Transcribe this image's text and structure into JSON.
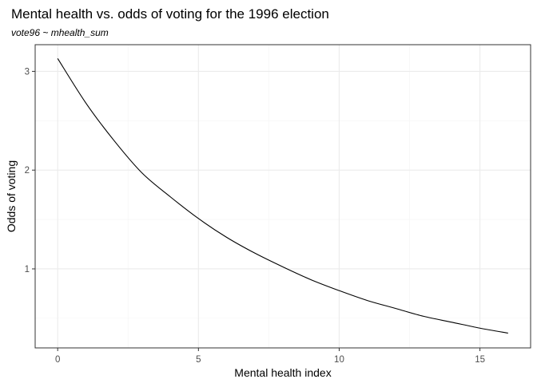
{
  "chart_data": {
    "type": "line",
    "title": "Mental health vs. odds of voting for the 1996 election",
    "subtitle": "vote96 ~ mhealth_sum",
    "xlabel": "Mental health index",
    "ylabel": "Odds of voting",
    "xlim": [
      -0.8,
      16.8
    ],
    "ylim": [
      0.2,
      3.27
    ],
    "x_ticks": [
      0,
      5,
      10,
      15
    ],
    "y_ticks": [
      1,
      2,
      3
    ],
    "grid": true,
    "series": [
      {
        "x": [
          0,
          1,
          2,
          3,
          4,
          5,
          6,
          7,
          8,
          9,
          10,
          11,
          12,
          13,
          14,
          15,
          16
        ],
        "values": [
          3.13,
          2.68,
          2.3,
          1.97,
          1.73,
          1.51,
          1.32,
          1.16,
          1.02,
          0.89,
          0.78,
          0.68,
          0.6,
          0.52,
          0.46,
          0.4,
          0.35
        ]
      }
    ]
  }
}
